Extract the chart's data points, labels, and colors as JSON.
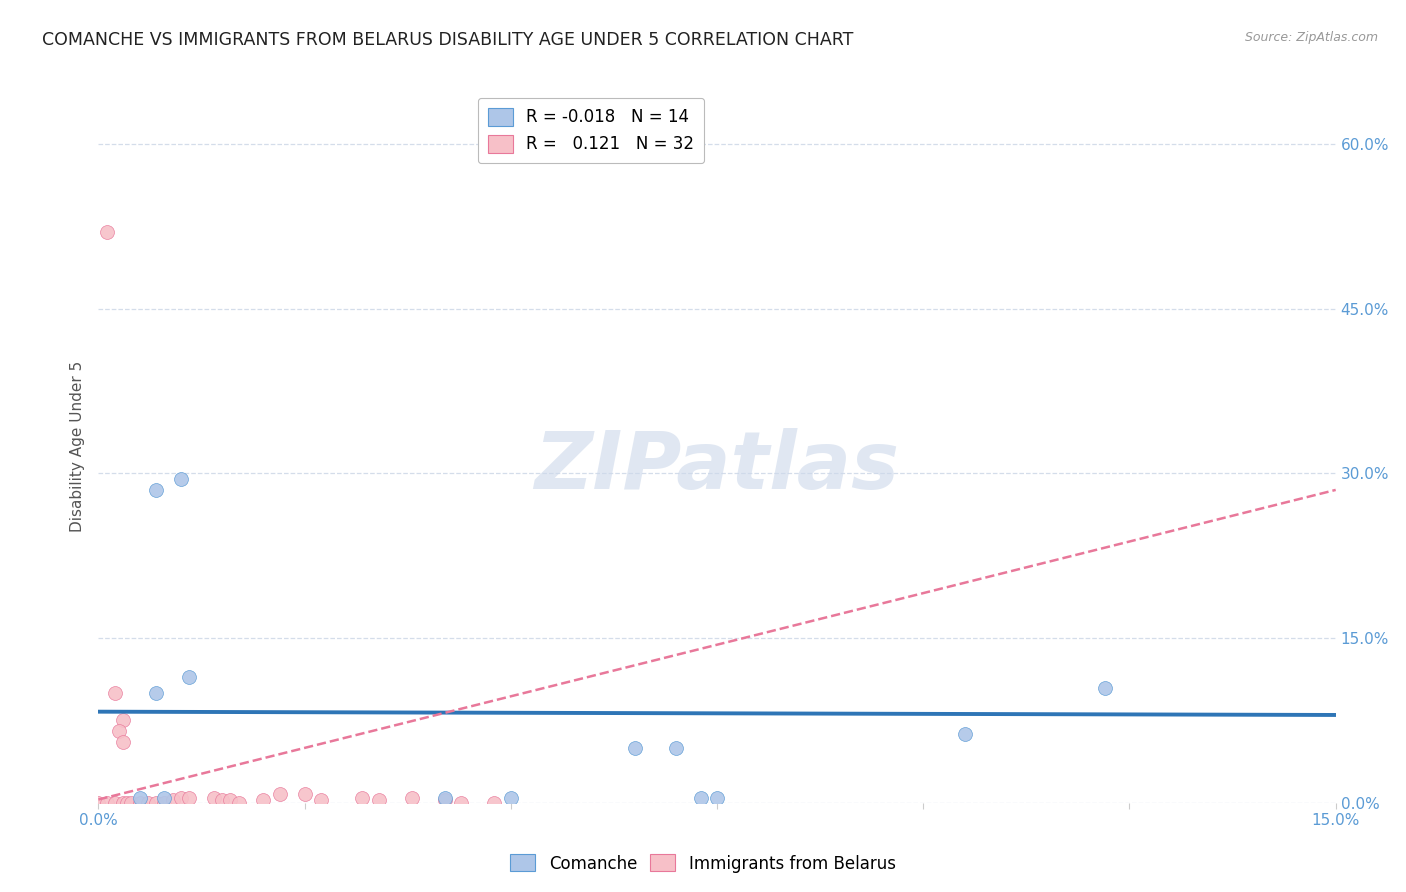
{
  "title": "COMANCHE VS IMMIGRANTS FROM BELARUS DISABILITY AGE UNDER 5 CORRELATION CHART",
  "source": "Source: ZipAtlas.com",
  "ylabel": "Disability Age Under 5",
  "xlim": [
    0.0,
    0.15
  ],
  "ylim": [
    0.0,
    0.65
  ],
  "xtick_vals": [
    0.0,
    0.025,
    0.05,
    0.075,
    0.1,
    0.125,
    0.15
  ],
  "xtick_labels": [
    "0.0%",
    "",
    "",
    "",
    "",
    "",
    "15.0%"
  ],
  "ytick_vals": [
    0.0,
    0.15,
    0.3,
    0.45,
    0.6
  ],
  "ytick_right_labels": [
    "0.0%",
    "15.0%",
    "30.0%",
    "45.0%",
    "60.0%"
  ],
  "legend_top": [
    {
      "label": "R = -0.018   N = 14",
      "facecolor": "#aec6e8",
      "edgecolor": "#5b9bd5"
    },
    {
      "label": "R =   0.121   N = 32",
      "facecolor": "#f7c0c8",
      "edgecolor": "#e8789a"
    }
  ],
  "comanche_scatter_x": [
    0.005,
    0.008,
    0.042,
    0.05,
    0.073,
    0.075,
    0.007,
    0.01,
    0.007,
    0.011,
    0.105,
    0.122,
    0.065,
    0.07
  ],
  "comanche_scatter_y": [
    0.004,
    0.004,
    0.004,
    0.004,
    0.004,
    0.004,
    0.285,
    0.295,
    0.1,
    0.115,
    0.063,
    0.105,
    0.05,
    0.05
  ],
  "comanche_color": "#aec6e8",
  "comanche_edgecolor": "#5b9bd5",
  "belarus_scatter_x": [
    0.0,
    0.001,
    0.002,
    0.003,
    0.0035,
    0.004,
    0.005,
    0.006,
    0.007,
    0.008,
    0.009,
    0.01,
    0.011,
    0.014,
    0.015,
    0.016,
    0.017,
    0.02,
    0.022,
    0.025,
    0.027,
    0.032,
    0.034,
    0.038,
    0.042,
    0.044,
    0.048,
    0.001,
    0.002,
    0.003,
    0.0025,
    0.003
  ],
  "belarus_scatter_y": [
    0.0,
    0.0,
    0.0,
    0.0,
    0.0,
    0.0,
    0.0,
    0.0,
    0.0,
    0.0,
    0.003,
    0.004,
    0.004,
    0.004,
    0.003,
    0.003,
    0.0,
    0.003,
    0.008,
    0.008,
    0.003,
    0.004,
    0.003,
    0.004,
    0.003,
    0.0,
    0.0,
    0.52,
    0.1,
    0.075,
    0.065,
    0.055
  ],
  "belarus_color": "#f7c0c8",
  "belarus_edgecolor": "#e8789a",
  "scatter_size": 100,
  "comanche_trend_x": [
    0.0,
    0.15
  ],
  "comanche_trend_y": [
    0.083,
    0.08
  ],
  "comanche_trend_color": "#2e75b6",
  "comanche_trend_lw": 2.8,
  "belarus_trend_x": [
    0.0,
    0.15
  ],
  "belarus_trend_y": [
    0.003,
    0.285
  ],
  "belarus_trend_color": "#e8789a",
  "belarus_trend_lw": 1.8,
  "watermark_text": "ZIPatlas",
  "watermark_color": "#ccd8ea",
  "background": "#ffffff",
  "grid_color": "#d0dae8",
  "title_color": "#222222",
  "title_fontsize": 12.5,
  "tick_color": "#5b9bd5",
  "tick_fontsize": 11,
  "ylabel_color": "#555555",
  "ylabel_fontsize": 11
}
